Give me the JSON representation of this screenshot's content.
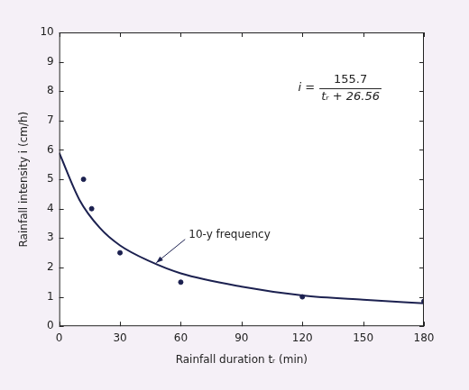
{
  "chart_data": {
    "type": "scatter",
    "x_label": "Rainfall duration tᵣ (min)",
    "y_label": "Rainfall intensity i (cm/h)",
    "xlim": [
      0,
      180
    ],
    "xticks": [
      0,
      30,
      60,
      90,
      120,
      150,
      180
    ],
    "ylim": [
      0,
      10
    ],
    "yticks": [
      0,
      1,
      2,
      3,
      4,
      5,
      6,
      7,
      8,
      9,
      10
    ],
    "grid": false,
    "color": "#1c2150",
    "series": [
      {
        "type": "line",
        "line_style": "solid",
        "marker": "none",
        "x": [
          0,
          10,
          20,
          30,
          45,
          60,
          90,
          120,
          150,
          180
        ],
        "values": [
          5.9,
          4.3,
          3.35,
          2.75,
          2.2,
          1.8,
          1.35,
          1.05,
          0.9,
          0.78
        ]
      },
      {
        "type": "scatter",
        "marker": "circle",
        "x": [
          12,
          16,
          30,
          60,
          120,
          180
        ],
        "values": [
          5.0,
          4.0,
          2.5,
          1.5,
          1.0,
          0.85
        ]
      }
    ],
    "annotations": [
      {
        "text": "10-y frequency",
        "x": 47,
        "y": 2.1
      }
    ],
    "equation": {
      "lhs": "i =",
      "numerator": "155.7",
      "denominator": "tᵣ + 26.56"
    }
  }
}
